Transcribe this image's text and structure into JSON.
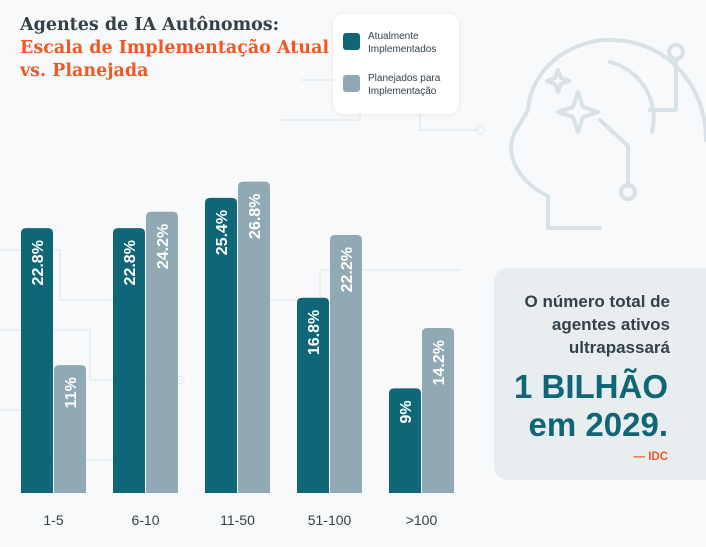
{
  "title": {
    "line1": "Agentes de IA Autônomos:",
    "line2": "Escala de Implementação Atual",
    "line3": "vs. Planejada"
  },
  "legend": {
    "current": "Atualmente Implementados",
    "planned": "Planejados para Implementação"
  },
  "colors": {
    "current": "#0e6676",
    "planned": "#91a9b4",
    "accent": "#ef5a24",
    "text": "#33414a"
  },
  "callout": {
    "line1": "O número total de",
    "line2": "agentes ativos",
    "line3": "ultrapassará",
    "big1": "1 BILHÃO",
    "big2": "em 2029.",
    "source": "— IDC"
  },
  "icons": [
    "ai-head-icon"
  ],
  "chart_data": {
    "type": "bar",
    "title": "Agentes de IA Autônomos: Escala de Implementação Atual vs. Planejada",
    "categories": [
      "1-5",
      "6-10",
      "11-50",
      "51-100",
      ">100"
    ],
    "series": [
      {
        "name": "Atualmente Implementados",
        "values": [
          22.8,
          22.8,
          25.4,
          16.8,
          9
        ],
        "labels": [
          "22.8%",
          "22.8%",
          "25.4%",
          "16.8%",
          "9%"
        ]
      },
      {
        "name": "Planejados para Implementação",
        "values": [
          11,
          24.2,
          26.8,
          22.2,
          14.2
        ],
        "labels": [
          "11%",
          "24.2%",
          "26.8%",
          "22.2%",
          "14.2%"
        ]
      }
    ],
    "xlabel": "",
    "ylabel": "",
    "ylim": [
      0,
      30
    ],
    "grid": false,
    "legend": "top"
  }
}
